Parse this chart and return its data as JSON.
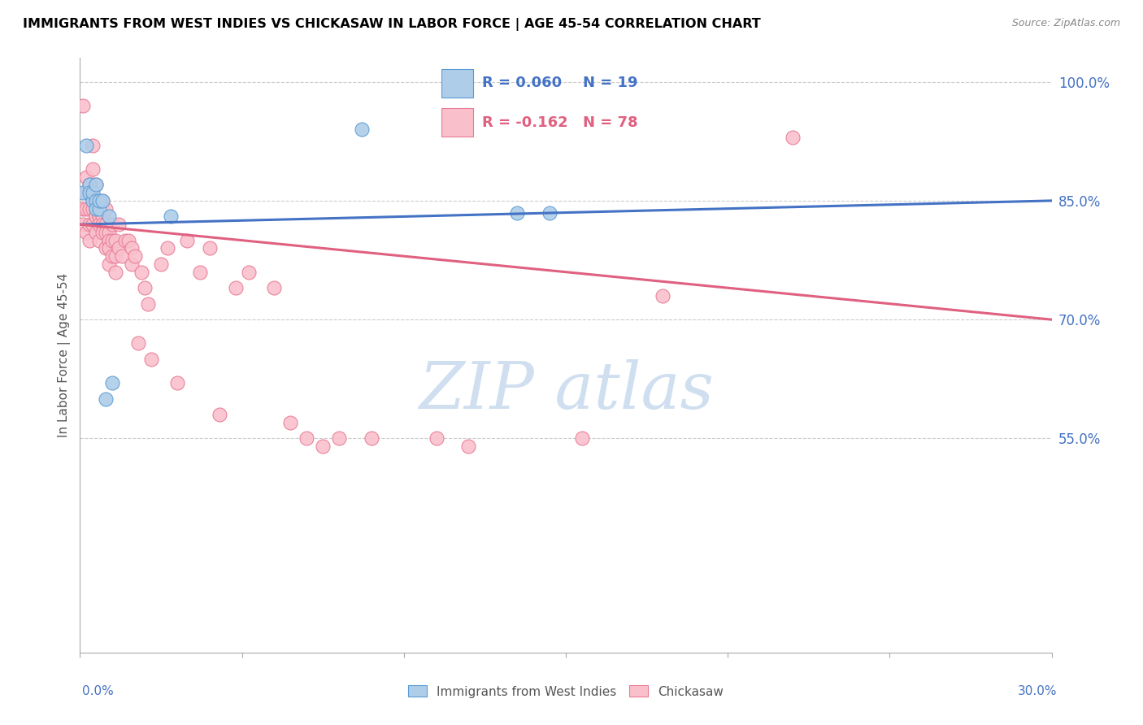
{
  "title": "IMMIGRANTS FROM WEST INDIES VS CHICKASAW IN LABOR FORCE | AGE 45-54 CORRELATION CHART",
  "source": "Source: ZipAtlas.com",
  "ylabel": "In Labor Force | Age 45-54",
  "xmin": 0.0,
  "xmax": 0.3,
  "ymin": 0.28,
  "ymax": 1.03,
  "blue_R": 0.06,
  "blue_N": 19,
  "pink_R": -0.162,
  "pink_N": 78,
  "legend_label_blue": "Immigrants from West Indies",
  "legend_label_pink": "Chickasaw",
  "blue_color": "#aecde8",
  "pink_color": "#f9c0cc",
  "blue_edge_color": "#5b9bd5",
  "pink_edge_color": "#e87a94",
  "blue_line_color": "#4472C4",
  "pink_line_color": "#e06080",
  "axis_color": "#4472C4",
  "grid_color": "#cccccc",
  "title_color": "#000000",
  "source_color": "#888888",
  "watermark_color": "#d0dff0",
  "blue_line_intercept": 0.82,
  "blue_line_slope": 0.1,
  "pink_line_intercept": 0.82,
  "pink_line_slope": -0.4,
  "blue_x": [
    0.001,
    0.002,
    0.003,
    0.003,
    0.004,
    0.004,
    0.005,
    0.005,
    0.005,
    0.006,
    0.006,
    0.007,
    0.009,
    0.028,
    0.087,
    0.135,
    0.145,
    0.008,
    0.01
  ],
  "blue_y": [
    0.86,
    0.92,
    0.87,
    0.86,
    0.85,
    0.86,
    0.85,
    0.87,
    0.84,
    0.84,
    0.85,
    0.85,
    0.83,
    0.83,
    0.94,
    0.835,
    0.835,
    0.6,
    0.62
  ],
  "pink_x": [
    0.001,
    0.001,
    0.001,
    0.002,
    0.002,
    0.002,
    0.002,
    0.003,
    0.003,
    0.003,
    0.003,
    0.003,
    0.004,
    0.004,
    0.004,
    0.004,
    0.005,
    0.005,
    0.005,
    0.005,
    0.005,
    0.006,
    0.006,
    0.006,
    0.006,
    0.006,
    0.007,
    0.007,
    0.007,
    0.007,
    0.007,
    0.008,
    0.008,
    0.008,
    0.008,
    0.009,
    0.009,
    0.009,
    0.009,
    0.01,
    0.01,
    0.01,
    0.011,
    0.011,
    0.011,
    0.012,
    0.012,
    0.013,
    0.014,
    0.015,
    0.016,
    0.016,
    0.017,
    0.018,
    0.019,
    0.02,
    0.021,
    0.022,
    0.025,
    0.027,
    0.03,
    0.033,
    0.037,
    0.04,
    0.043,
    0.048,
    0.052,
    0.06,
    0.065,
    0.07,
    0.075,
    0.08,
    0.09,
    0.11,
    0.12,
    0.155,
    0.18,
    0.22
  ],
  "pink_y": [
    0.97,
    0.84,
    0.82,
    0.88,
    0.86,
    0.84,
    0.81,
    0.87,
    0.86,
    0.84,
    0.82,
    0.8,
    0.92,
    0.89,
    0.84,
    0.82,
    0.87,
    0.85,
    0.84,
    0.83,
    0.81,
    0.84,
    0.83,
    0.83,
    0.82,
    0.8,
    0.85,
    0.84,
    0.83,
    0.82,
    0.81,
    0.84,
    0.82,
    0.81,
    0.79,
    0.81,
    0.8,
    0.79,
    0.77,
    0.82,
    0.8,
    0.78,
    0.8,
    0.78,
    0.76,
    0.82,
    0.79,
    0.78,
    0.8,
    0.8,
    0.79,
    0.77,
    0.78,
    0.67,
    0.76,
    0.74,
    0.72,
    0.65,
    0.77,
    0.79,
    0.62,
    0.8,
    0.76,
    0.79,
    0.58,
    0.74,
    0.76,
    0.74,
    0.57,
    0.55,
    0.54,
    0.55,
    0.55,
    0.55,
    0.54,
    0.55,
    0.73,
    0.93
  ]
}
